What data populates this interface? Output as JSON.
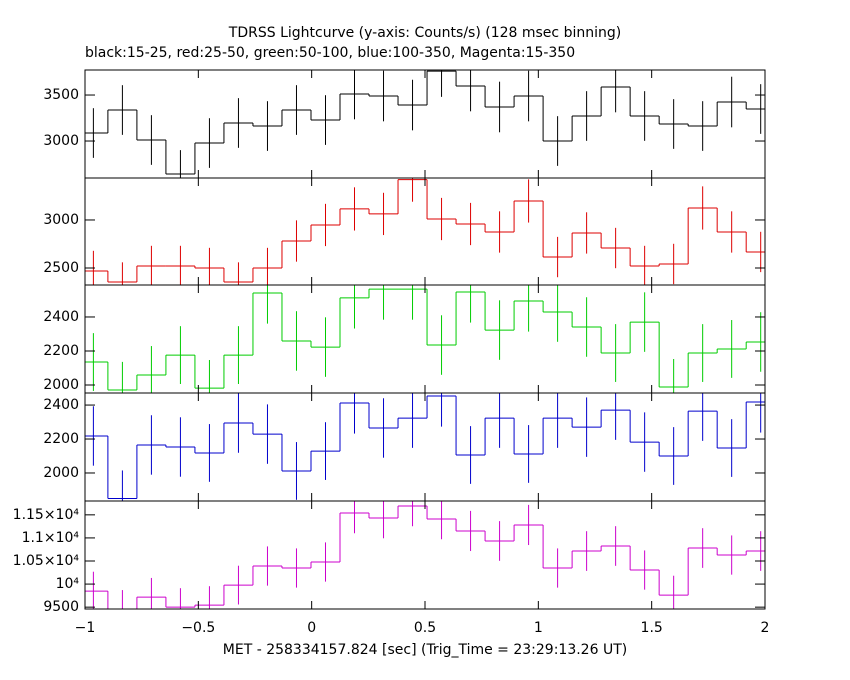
{
  "chart_data": [
    {
      "type": "histogram",
      "title": "TDRSS Lightcurve (y-axis: Counts/s) (128 msec binning)",
      "subtitle": "black:15-25, red:25-50, green:50-100, blue:100-350, Magenta:15-350",
      "color": "#000000",
      "bins": [
        -1.027,
        -0.899,
        -0.771,
        -0.643,
        -0.515,
        -0.387,
        -0.259,
        -0.131,
        -0.003,
        0.125,
        0.253,
        0.381,
        0.509,
        0.637,
        0.765,
        0.893,
        1.021,
        1.149,
        1.277,
        1.405,
        1.533,
        1.661,
        1.789,
        1.917,
        2.045
      ],
      "values": [
        3087,
        3337,
        3011,
        2641,
        2978,
        3196,
        3163,
        3337,
        3228,
        3511,
        3489,
        3391,
        3760,
        3598,
        3370,
        3489,
        3000,
        3272,
        3587,
        3272,
        3185,
        3163,
        3424,
        3348
      ],
      "errors": [
        270,
        270,
        270,
        260,
        270,
        270,
        270,
        270,
        270,
        275,
        275,
        275,
        280,
        275,
        275,
        275,
        270,
        270,
        275,
        270,
        270,
        270,
        275,
        270
      ],
      "ylim": [
        2598,
        3772
      ],
      "yticks": [
        3000,
        3500
      ]
    },
    {
      "type": "histogram",
      "color": "#dd0000",
      "bins": [
        -1.027,
        -0.899,
        -0.771,
        -0.643,
        -0.515,
        -0.387,
        -0.259,
        -0.131,
        -0.003,
        0.125,
        0.253,
        0.381,
        0.509,
        0.637,
        0.765,
        0.893,
        1.021,
        1.149,
        1.277,
        1.405,
        1.533,
        1.661,
        1.789,
        1.917,
        2.045
      ],
      "values": [
        2469,
        2354,
        2521,
        2521,
        2500,
        2354,
        2500,
        2781,
        2948,
        3115,
        3063,
        3420,
        3010,
        2958,
        2875,
        3198,
        2614,
        2865,
        2708,
        2521,
        2542,
        3125,
        2875,
        2667
      ],
      "errors": [
        210,
        205,
        210,
        210,
        210,
        205,
        210,
        215,
        220,
        225,
        220,
        230,
        220,
        220,
        215,
        225,
        210,
        215,
        210,
        210,
        210,
        225,
        215,
        210
      ],
      "ylim": [
        2323,
        3437
      ],
      "yticks": [
        2500,
        3000
      ]
    },
    {
      "type": "histogram",
      "color": "#00cc00",
      "bins": [
        -1.027,
        -0.899,
        -0.771,
        -0.643,
        -0.515,
        -0.387,
        -0.259,
        -0.131,
        -0.003,
        0.125,
        0.253,
        0.381,
        0.509,
        0.637,
        0.765,
        0.893,
        1.021,
        1.149,
        1.277,
        1.405,
        1.533,
        1.661,
        1.789,
        1.917,
        2.045
      ],
      "values": [
        2135,
        1971,
        2059,
        2176,
        1982,
        2176,
        2541,
        2259,
        2223,
        2512,
        2564,
        2564,
        2235,
        2547,
        2323,
        2494,
        2429,
        2341,
        2188,
        2370,
        1988,
        2188,
        2212,
        2253
      ],
      "errors": [
        170,
        165,
        170,
        170,
        165,
        170,
        180,
        175,
        175,
        180,
        180,
        180,
        175,
        180,
        175,
        180,
        175,
        175,
        170,
        175,
        165,
        170,
        170,
        175
      ],
      "ylim": [
        1953,
        2588
      ],
      "yticks": [
        2000,
        2200,
        2400
      ]
    },
    {
      "type": "histogram",
      "color": "#0000cc",
      "bins": [
        -1.027,
        -0.899,
        -0.771,
        -0.643,
        -0.515,
        -0.387,
        -0.259,
        -0.131,
        -0.003,
        0.125,
        0.253,
        0.381,
        0.509,
        0.637,
        0.765,
        0.893,
        1.021,
        1.149,
        1.277,
        1.405,
        1.533,
        1.661,
        1.789,
        1.917,
        2.045
      ],
      "values": [
        2218,
        1850,
        2165,
        2153,
        2118,
        2294,
        2229,
        2012,
        2129,
        2412,
        2265,
        2323,
        2453,
        2106,
        2323,
        2112,
        2323,
        2270,
        2370,
        2182,
        2100,
        2364,
        2147,
        2418
      ],
      "errors": [
        175,
        165,
        175,
        175,
        170,
        175,
        175,
        170,
        170,
        180,
        175,
        175,
        180,
        170,
        175,
        170,
        175,
        175,
        175,
        175,
        170,
        175,
        170,
        180
      ],
      "ylim": [
        1835,
        2471
      ],
      "yticks": [
        2000,
        2200,
        2400
      ]
    },
    {
      "type": "histogram",
      "color": "#cc00cc",
      "bins": [
        -1.027,
        -0.899,
        -0.771,
        -0.643,
        -0.515,
        -0.387,
        -0.259,
        -0.131,
        -0.003,
        0.125,
        0.253,
        0.381,
        0.509,
        0.637,
        0.765,
        0.893,
        1.021,
        1.149,
        1.277,
        1.405,
        1.533,
        1.661,
        1.789,
        1.917,
        2.045
      ],
      "values": [
        9848,
        9460,
        9718,
        9501,
        9544,
        9978,
        10391,
        10348,
        10478,
        11541,
        11432,
        11693,
        11411,
        11151,
        10934,
        11281,
        10348,
        10716,
        10825,
        10304,
        9761,
        10781,
        10629,
        10716
      ],
      "errors": [
        420,
        410,
        415,
        410,
        410,
        420,
        425,
        425,
        425,
        440,
        440,
        440,
        440,
        435,
        430,
        435,
        425,
        430,
        430,
        425,
        420,
        430,
        425,
        430
      ],
      "ylim": [
        9460,
        11800
      ],
      "yticks": [
        9500,
        {
          "value": 10000,
          "label": "10⁴"
        },
        {
          "value": 10500,
          "label": "1.05×10⁴"
        },
        {
          "value": 11000,
          "label": "1.1×10⁴"
        },
        {
          "value": 11500,
          "label": "1.15×10⁴"
        }
      ],
      "xlim": [
        -1,
        2
      ],
      "xticks": [
        {
          "value": -1,
          "label": "−1"
        },
        {
          "value": -0.5,
          "label": "−0.5"
        },
        0,
        0.5,
        1,
        1.5,
        2
      ],
      "xlabel": "MET - 258334157.824 [sec] (Trig_Time = 23:29:13.26 UT)"
    }
  ]
}
